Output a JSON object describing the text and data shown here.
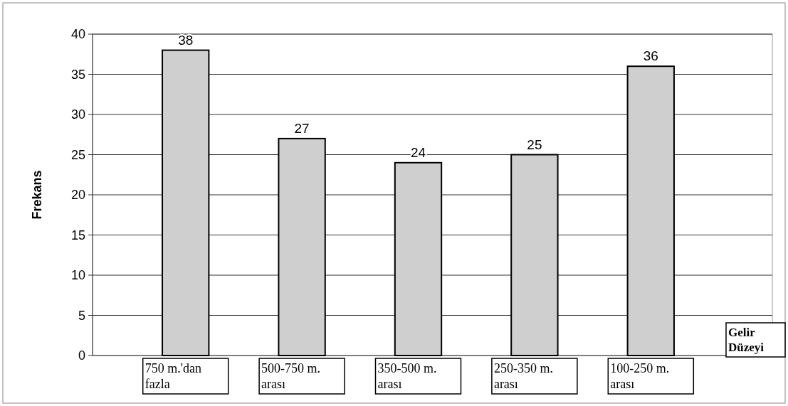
{
  "chart_data": {
    "type": "bar",
    "ylabel": "Frekans",
    "xlabel": "Gelir\nDüzeyi",
    "categories": [
      "750 m.'dan\nfazla",
      "500-750 m.\narası",
      "350-500 m.\narası",
      "250-350 m.\narası",
      "100-250 m.\narası"
    ],
    "values": [
      38,
      27,
      24,
      25,
      36
    ],
    "color": "#cfcfcf",
    "ylim": [
      0,
      40
    ],
    "yticks": [
      0,
      5,
      10,
      15,
      20,
      25,
      30,
      35,
      40
    ],
    "grid": "y",
    "data_labels": true
  }
}
